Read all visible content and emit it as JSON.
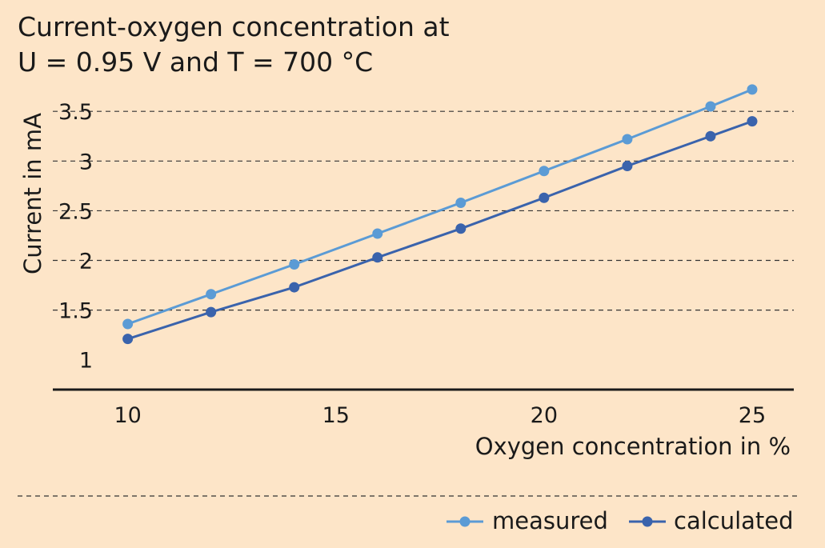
{
  "title_lines": [
    "Current-oxygen concentration at",
    "U = 0.95 V and T = 700 °C"
  ],
  "colors": {
    "background": "#fde5c8",
    "measured": "#5b9bd5",
    "calculated": "#3a63ac",
    "axis": "#1a1a1a",
    "grid": "#333333"
  },
  "chart_data": {
    "type": "line",
    "title": "Current-oxygen concentration at U = 0.95 V and T = 700 °C",
    "xlabel": "Oxygen concentration in %",
    "ylabel": "Current in mA",
    "xlim": [
      8.2,
      26.0
    ],
    "ylim": [
      0.7,
      3.55
    ],
    "xticks": [
      10,
      15,
      20,
      25
    ],
    "xtick_labels": [
      "10",
      "15",
      "20",
      "25"
    ],
    "yticks": [
      1,
      1.5,
      2,
      2.5,
      3,
      3.5
    ],
    "ytick_labels": [
      "1",
      "1.5",
      "2",
      "2.5",
      "3",
      "3.5"
    ],
    "grid": "horizontal dashed",
    "legend_position": "bottom-right",
    "series": [
      {
        "name": "measured",
        "x": [
          10,
          12,
          14,
          16,
          18,
          20,
          22,
          24,
          25
        ],
        "y": [
          1.36,
          1.66,
          1.96,
          2.27,
          2.58,
          2.9,
          3.22,
          3.55,
          3.72
        ]
      },
      {
        "name": "calculated",
        "x": [
          10,
          12,
          14,
          16,
          18,
          20,
          22,
          24,
          25
        ],
        "y": [
          1.21,
          1.48,
          1.73,
          2.03,
          2.32,
          2.63,
          2.95,
          3.25,
          3.4
        ]
      }
    ]
  }
}
